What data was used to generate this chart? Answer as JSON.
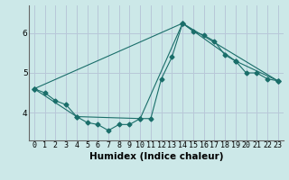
{
  "xlabel": "Humidex (Indice chaleur)",
  "background_color": "#cce8e8",
  "grid_color": "#b8c8d8",
  "line_color": "#1a6e6a",
  "series": [
    {
      "x": [
        0,
        1,
        2,
        3,
        4,
        5,
        6,
        7,
        8,
        9,
        10,
        11,
        12,
        13,
        14,
        15,
        16,
        17,
        18,
        19,
        20,
        21,
        22,
        23
      ],
      "y": [
        4.6,
        4.5,
        4.3,
        4.2,
        3.9,
        3.75,
        3.7,
        3.55,
        3.7,
        3.7,
        3.85,
        3.85,
        4.85,
        5.4,
        6.25,
        6.05,
        5.95,
        5.8,
        5.45,
        5.3,
        5.0,
        5.0,
        4.85,
        4.8
      ]
    },
    {
      "x": [
        0,
        4,
        10,
        14,
        19,
        23
      ],
      "y": [
        4.6,
        3.9,
        3.85,
        6.25,
        5.3,
        4.8
      ]
    },
    {
      "x": [
        0,
        14,
        23
      ],
      "y": [
        4.6,
        6.25,
        4.8
      ]
    }
  ],
  "ylim": [
    3.3,
    6.7
  ],
  "xlim": [
    -0.5,
    23.5
  ],
  "yticks": [
    4,
    5,
    6
  ],
  "xticks": [
    0,
    1,
    2,
    3,
    4,
    5,
    6,
    7,
    8,
    9,
    10,
    11,
    12,
    13,
    14,
    15,
    16,
    17,
    18,
    19,
    20,
    21,
    22,
    23
  ],
  "tick_fontsize": 6.0,
  "ylabel_fontsize": 7.5,
  "xlabel_fontsize": 7.5
}
